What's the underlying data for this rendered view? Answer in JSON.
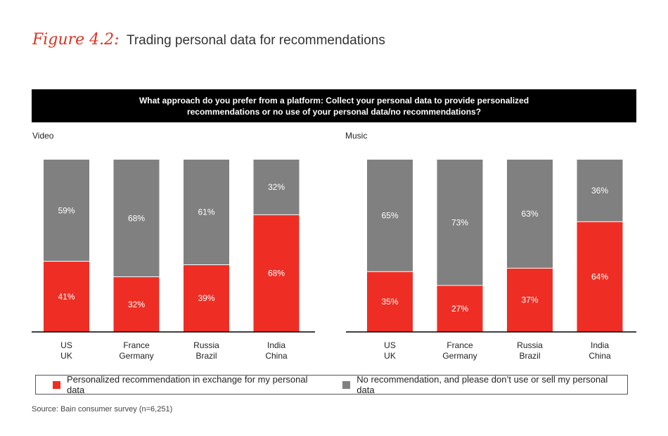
{
  "figure": {
    "label": "Figure 4.2:",
    "title": "Trading personal data for recommendations"
  },
  "question": "What approach do you prefer from a platform: Collect your personal data to provide personalized recommendations or no use of your personal data/no recommendations?",
  "colors": {
    "personalized": "#ee2e24",
    "no_recommendation": "#808080"
  },
  "legend": {
    "personalized": "Personalized recommendation in exchange for my personal data",
    "no_recommendation": "No recommendation, and please don’t use or sell my personal data"
  },
  "source": "Source: Bain consumer survey (n=6,251)",
  "chart_data": [
    {
      "type": "bar",
      "stacked": true,
      "panel_label": "Video",
      "categories": [
        [
          "US",
          "UK"
        ],
        [
          "France",
          "Germany"
        ],
        [
          "Russia",
          "Brazil"
        ],
        [
          "India",
          "China"
        ]
      ],
      "series": [
        {
          "name": "Personalized recommendation in exchange for my personal data",
          "values": [
            41,
            32,
            39,
            68
          ],
          "labels": [
            "41%",
            "32%",
            "39%",
            "68%"
          ]
        },
        {
          "name": "No recommendation, and please don’t use or sell my personal data",
          "values": [
            59,
            68,
            61,
            32
          ],
          "labels": [
            "59%",
            "68%",
            "61%",
            "32%"
          ]
        }
      ],
      "ylim": [
        0,
        100
      ]
    },
    {
      "type": "bar",
      "stacked": true,
      "panel_label": "Music",
      "categories": [
        [
          "US",
          "UK"
        ],
        [
          "France",
          "Germany"
        ],
        [
          "Russia",
          "Brazil"
        ],
        [
          "India",
          "China"
        ]
      ],
      "series": [
        {
          "name": "Personalized recommendation in exchange for my personal data",
          "values": [
            35,
            27,
            37,
            64
          ],
          "labels": [
            "35%",
            "27%",
            "37%",
            "64%"
          ]
        },
        {
          "name": "No recommendation, and please don’t use or sell my personal data",
          "values": [
            65,
            73,
            63,
            36
          ],
          "labels": [
            "65%",
            "73%",
            "63%",
            "36%"
          ]
        }
      ],
      "ylim": [
        0,
        100
      ]
    }
  ]
}
